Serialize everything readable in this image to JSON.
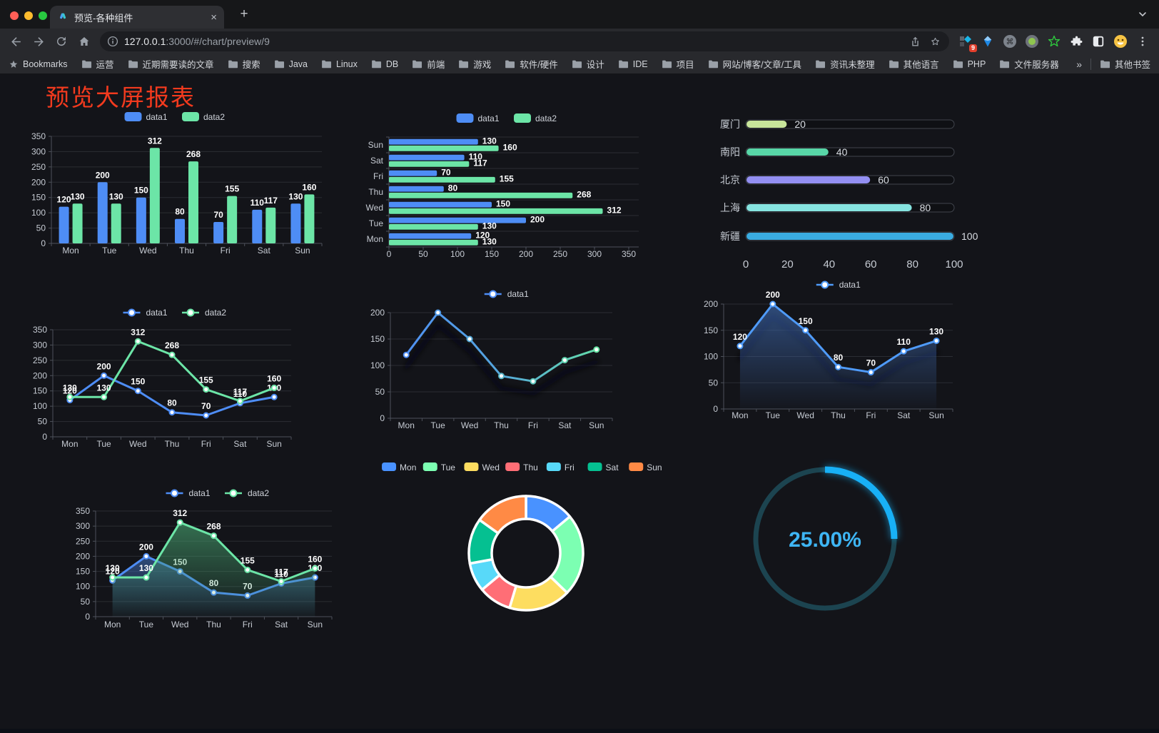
{
  "browser": {
    "tab_title": "预览-各种组件",
    "tab_close": "×",
    "new_tab": "+",
    "url_host": "127.0.0.1",
    "url_rest": ":3000/#/chart/preview/9",
    "bookmarks_label": "Bookmarks",
    "bookmark_folders": [
      "运营",
      "近期需要读的文章",
      "搜索",
      "Java",
      "Linux",
      "DB",
      "前端",
      "游戏",
      "软件/硬件",
      "设计",
      "IDE",
      "项目",
      "网站/博客/文章/工具",
      "资讯未整理",
      "其他语言",
      "PHP",
      "文件服务器"
    ],
    "overflow_chevron": "»",
    "other_bookmarks_label": "其他书签",
    "extension_badge": "9"
  },
  "page": {
    "title": "预览大屏报表"
  },
  "chart_data": [
    {
      "id": "bar-vertical",
      "type": "bar",
      "legend_position": "top",
      "grid": true,
      "categories": [
        "Mon",
        "Tue",
        "Wed",
        "Thu",
        "Fri",
        "Sat",
        "Sun"
      ],
      "series": [
        {
          "name": "data1",
          "color": "#4e8df5",
          "values": [
            120,
            200,
            150,
            80,
            70,
            110,
            130
          ]
        },
        {
          "name": "data2",
          "color": "#6ce5a7",
          "values": [
            130,
            130,
            312,
            268,
            155,
            117,
            160
          ]
        }
      ],
      "ylim": [
        0,
        350
      ],
      "ytick": 50,
      "value_labels": true
    },
    {
      "id": "bar-horizontal",
      "type": "bar",
      "orientation": "horizontal",
      "legend_position": "top",
      "grid": true,
      "categories": [
        "Mon",
        "Tue",
        "Wed",
        "Thu",
        "Fri",
        "Sat",
        "Sun"
      ],
      "series": [
        {
          "name": "data1",
          "color": "#4e8df5",
          "values": [
            120,
            200,
            150,
            80,
            70,
            110,
            130
          ]
        },
        {
          "name": "data2",
          "color": "#6ce5a7",
          "values": [
            130,
            130,
            312,
            268,
            155,
            117,
            160
          ]
        }
      ],
      "xlim": [
        0,
        350
      ],
      "xtick": 50,
      "value_labels": true
    },
    {
      "id": "city-progress",
      "type": "bar",
      "subtype": "progress-list",
      "items": [
        {
          "label": "厦门",
          "value": 20,
          "color": "#c8e59b"
        },
        {
          "label": "南阳",
          "value": 40,
          "color": "#58d6a7"
        },
        {
          "label": "北京",
          "value": 60,
          "color": "#938ff2"
        },
        {
          "label": "上海",
          "value": 80,
          "color": "#86e4e0"
        },
        {
          "label": "新疆",
          "value": 100,
          "color": "#3aace1"
        }
      ],
      "xlim": [
        0,
        100
      ],
      "xticks": [
        0,
        20,
        40,
        60,
        80,
        100
      ]
    },
    {
      "id": "line-two-series",
      "type": "line",
      "legend_position": "top",
      "grid": true,
      "categories": [
        "Mon",
        "Tue",
        "Wed",
        "Thu",
        "Fri",
        "Sat",
        "Sun"
      ],
      "series": [
        {
          "name": "data1",
          "color": "#4e8df5",
          "values": [
            120,
            200,
            150,
            80,
            70,
            110,
            130
          ]
        },
        {
          "name": "data2",
          "color": "#6ce5a7",
          "values": [
            130,
            130,
            312,
            268,
            155,
            117,
            160
          ]
        }
      ],
      "ylim": [
        0,
        350
      ],
      "ytick": 50,
      "value_labels": true
    },
    {
      "id": "line-gradient",
      "type": "line",
      "legend_position": "top",
      "grid": true,
      "categories": [
        "Mon",
        "Tue",
        "Wed",
        "Thu",
        "Fri",
        "Sat",
        "Sun"
      ],
      "series": [
        {
          "name": "data1",
          "gradient": [
            "#4e8df5",
            "#65e3a1"
          ],
          "values": [
            120,
            200,
            150,
            80,
            70,
            110,
            130
          ],
          "shadow": true
        }
      ],
      "ylim": [
        0,
        200
      ],
      "ytick": 50,
      "value_labels": false
    },
    {
      "id": "line-area-labels",
      "type": "area",
      "legend_position": "top",
      "grid": true,
      "categories": [
        "Mon",
        "Tue",
        "Wed",
        "Thu",
        "Fri",
        "Sat",
        "Sun"
      ],
      "series": [
        {
          "name": "data1",
          "color": "#4f9bfa",
          "area_rgb": "62,105,175",
          "values": [
            120,
            200,
            150,
            80,
            70,
            110,
            130
          ],
          "shadow": true
        }
      ],
      "ylim": [
        0,
        200
      ],
      "ytick": 50,
      "value_labels": true
    },
    {
      "id": "area-two-series",
      "type": "area",
      "legend_position": "top",
      "grid": true,
      "categories": [
        "Mon",
        "Tue",
        "Wed",
        "Thu",
        "Fri",
        "Sat",
        "Sun"
      ],
      "series": [
        {
          "name": "data1",
          "color": "#4e8df5",
          "area_rgb": "62,105,175",
          "values": [
            120,
            200,
            150,
            80,
            70,
            110,
            130
          ]
        },
        {
          "name": "data2",
          "color": "#6ce5a7",
          "area_rgb": "70,160,110",
          "values": [
            130,
            130,
            312,
            268,
            155,
            117,
            160
          ]
        }
      ],
      "ylim": [
        0,
        350
      ],
      "ytick": 50,
      "value_labels": true
    },
    {
      "id": "donut",
      "type": "pie",
      "legend_position": "top",
      "inner_radius_ratio": 0.6,
      "categories": [
        "Mon",
        "Tue",
        "Wed",
        "Thu",
        "Fri",
        "Sat",
        "Sun"
      ],
      "values": [
        120,
        200,
        150,
        80,
        70,
        110,
        130
      ],
      "colors": [
        "#4992ff",
        "#7cffb2",
        "#fddd60",
        "#ff6e76",
        "#58d9f9",
        "#05c091",
        "#ff8a45"
      ]
    },
    {
      "id": "gauge",
      "type": "gauge",
      "value": 25,
      "max": 100,
      "label": "25.00%",
      "track_color": "#1c4450",
      "progress_color": "#18b0f6",
      "text_color": "#3eb5f4"
    }
  ]
}
